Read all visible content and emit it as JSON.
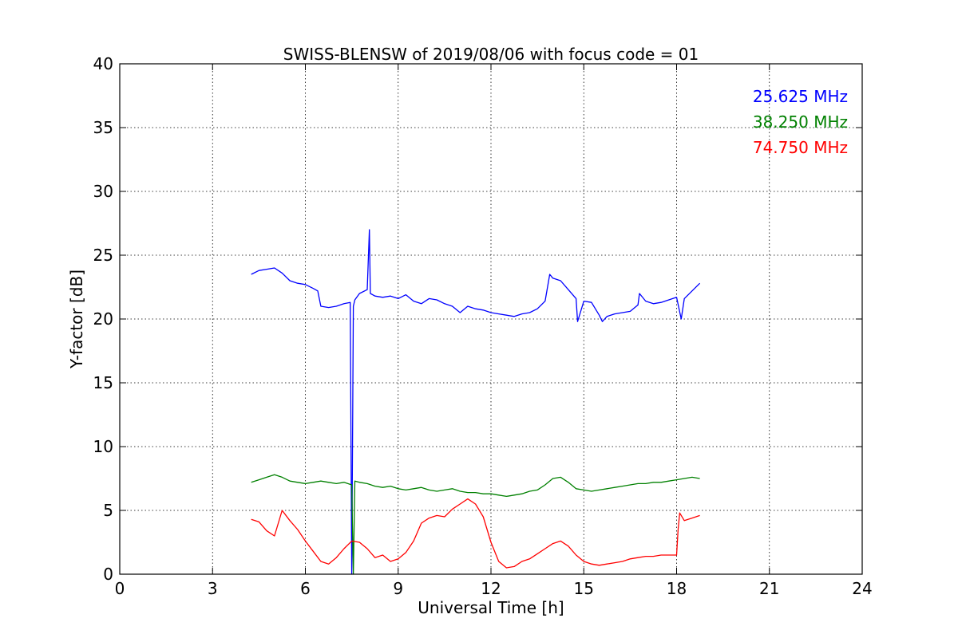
{
  "chart_data": {
    "type": "line",
    "title": "SWISS-BLENSW of 2019/08/06 with focus code = 01",
    "xlabel": "Universal Time [h]",
    "ylabel": "Y-factor [dB]",
    "xlim": [
      0,
      24
    ],
    "ylim": [
      0,
      40
    ],
    "xticks": [
      0,
      3,
      6,
      9,
      12,
      15,
      18,
      21,
      24
    ],
    "yticks": [
      0,
      5,
      10,
      15,
      20,
      25,
      30,
      35,
      40
    ],
    "grid": true,
    "legend_position": "top-right",
    "series": [
      {
        "name": "25.625 MHz",
        "color": "#0000ff",
        "x": [
          4.25,
          4.5,
          4.75,
          5.0,
          5.25,
          5.5,
          5.75,
          6.0,
          6.25,
          6.4,
          6.5,
          6.75,
          7.0,
          7.25,
          7.45,
          7.5,
          7.55,
          7.6,
          7.75,
          8.0,
          8.07,
          8.1,
          8.25,
          8.5,
          8.75,
          9.0,
          9.25,
          9.5,
          9.75,
          10.0,
          10.25,
          10.5,
          10.75,
          11.0,
          11.25,
          11.5,
          11.75,
          12.0,
          12.25,
          12.5,
          12.75,
          13.0,
          13.25,
          13.5,
          13.75,
          13.9,
          14.0,
          14.25,
          14.5,
          14.75,
          14.8,
          15.0,
          15.25,
          15.5,
          15.6,
          15.75,
          16.0,
          16.25,
          16.5,
          16.75,
          16.8,
          17.0,
          17.25,
          17.5,
          17.75,
          18.0,
          18.15,
          18.25,
          18.5,
          18.75
        ],
        "y": [
          23.5,
          23.8,
          23.9,
          24.0,
          23.6,
          23.0,
          22.8,
          22.7,
          22.4,
          22.2,
          21.0,
          20.9,
          21.0,
          21.2,
          21.3,
          0.0,
          21.0,
          21.5,
          22.0,
          22.3,
          27.0,
          22.0,
          21.8,
          21.7,
          21.8,
          21.6,
          21.9,
          21.4,
          21.2,
          21.6,
          21.5,
          21.2,
          21.0,
          20.5,
          21.0,
          20.8,
          20.7,
          20.5,
          20.4,
          20.3,
          20.2,
          20.4,
          20.5,
          20.8,
          21.4,
          23.5,
          23.2,
          23.0,
          22.3,
          21.6,
          19.8,
          21.4,
          21.3,
          20.3,
          19.8,
          20.2,
          20.4,
          20.5,
          20.6,
          21.1,
          22.0,
          21.4,
          21.2,
          21.3,
          21.5,
          21.7,
          20.0,
          21.6,
          22.2,
          22.8
        ]
      },
      {
        "name": "38.250 MHz",
        "color": "#008000",
        "x": [
          4.25,
          4.5,
          4.75,
          5.0,
          5.25,
          5.5,
          5.75,
          6.0,
          6.25,
          6.5,
          6.75,
          7.0,
          7.25,
          7.5,
          7.55,
          7.6,
          7.75,
          8.0,
          8.25,
          8.5,
          8.75,
          9.0,
          9.25,
          9.5,
          9.75,
          10.0,
          10.25,
          10.5,
          10.75,
          11.0,
          11.25,
          11.5,
          11.75,
          12.0,
          12.25,
          12.5,
          12.75,
          13.0,
          13.25,
          13.5,
          13.75,
          14.0,
          14.25,
          14.5,
          14.75,
          15.0,
          15.25,
          15.5,
          15.75,
          16.0,
          16.25,
          16.5,
          16.75,
          17.0,
          17.25,
          17.5,
          17.75,
          18.0,
          18.25,
          18.5,
          18.75
        ],
        "y": [
          7.2,
          7.4,
          7.6,
          7.8,
          7.6,
          7.3,
          7.2,
          7.1,
          7.2,
          7.3,
          7.2,
          7.1,
          7.2,
          7.0,
          0.0,
          7.3,
          7.2,
          7.1,
          6.9,
          6.8,
          6.9,
          6.7,
          6.6,
          6.7,
          6.8,
          6.6,
          6.5,
          6.6,
          6.7,
          6.5,
          6.4,
          6.4,
          6.3,
          6.3,
          6.2,
          6.1,
          6.2,
          6.3,
          6.5,
          6.6,
          7.0,
          7.5,
          7.6,
          7.2,
          6.7,
          6.6,
          6.5,
          6.6,
          6.7,
          6.8,
          6.9,
          7.0,
          7.1,
          7.1,
          7.2,
          7.2,
          7.3,
          7.4,
          7.5,
          7.6,
          7.5
        ]
      },
      {
        "name": "74.750 MHz",
        "color": "#ff0000",
        "x": [
          4.25,
          4.5,
          4.75,
          5.0,
          5.25,
          5.5,
          5.75,
          6.0,
          6.25,
          6.5,
          6.75,
          7.0,
          7.25,
          7.5,
          7.75,
          8.0,
          8.25,
          8.5,
          8.75,
          9.0,
          9.25,
          9.5,
          9.75,
          10.0,
          10.25,
          10.5,
          10.75,
          11.0,
          11.25,
          11.5,
          11.75,
          12.0,
          12.25,
          12.5,
          12.75,
          13.0,
          13.25,
          13.5,
          13.75,
          14.0,
          14.25,
          14.5,
          14.75,
          15.0,
          15.25,
          15.5,
          15.75,
          16.0,
          16.25,
          16.5,
          16.75,
          17.0,
          17.25,
          17.5,
          17.75,
          18.0,
          18.05,
          18.1,
          18.25,
          18.5,
          18.75
        ],
        "y": [
          4.3,
          4.1,
          3.4,
          3.0,
          5.0,
          4.2,
          3.5,
          2.6,
          1.8,
          1.0,
          0.8,
          1.3,
          2.0,
          2.6,
          2.5,
          2.0,
          1.3,
          1.5,
          1.0,
          1.2,
          1.7,
          2.6,
          4.0,
          4.4,
          4.6,
          4.5,
          5.1,
          5.5,
          5.9,
          5.5,
          4.5,
          2.5,
          1.0,
          0.5,
          0.6,
          1.0,
          1.2,
          1.6,
          2.0,
          2.4,
          2.6,
          2.2,
          1.5,
          1.0,
          0.8,
          0.7,
          0.8,
          0.9,
          1.0,
          1.2,
          1.3,
          1.4,
          1.4,
          1.5,
          1.5,
          1.5,
          3.5,
          4.8,
          4.2,
          4.4,
          4.6
        ]
      }
    ]
  }
}
